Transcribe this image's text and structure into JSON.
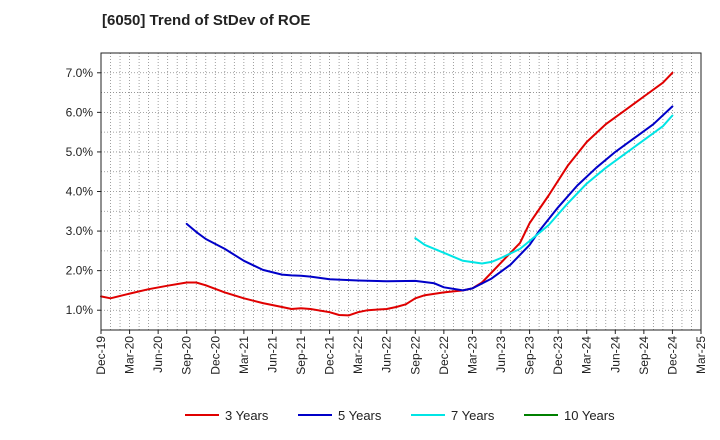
{
  "chart_data": {
    "type": "line",
    "title": "[6050]  Trend of StDev of ROE",
    "xlabel": "",
    "ylabel": "",
    "x_ticks": [
      "Dec-19",
      "Mar-20",
      "Jun-20",
      "Sep-20",
      "Dec-20",
      "Mar-21",
      "Jun-21",
      "Sep-21",
      "Dec-21",
      "Mar-22",
      "Jun-22",
      "Sep-22",
      "Dec-22",
      "Mar-23",
      "Jun-23",
      "Sep-23",
      "Dec-23",
      "Mar-24",
      "Jun-24",
      "Sep-24",
      "Dec-24",
      "Mar-25"
    ],
    "y_ticks": [
      "1.0%",
      "2.0%",
      "3.0%",
      "4.0%",
      "5.0%",
      "6.0%",
      "7.0%"
    ],
    "ylim": [
      0.5,
      7.5
    ],
    "grid": true,
    "legend_position": "bottom",
    "series": [
      {
        "name": "3 Years",
        "color": "#e00000",
        "points": [
          [
            "Dec-19",
            1.35
          ],
          [
            "Jan-20",
            1.3
          ],
          [
            "Mar-20",
            1.42
          ],
          [
            "May-20",
            1.53
          ],
          [
            "Jul-20",
            1.62
          ],
          [
            "Sep-20",
            1.7
          ],
          [
            "Oct-20",
            1.7
          ],
          [
            "Nov-20",
            1.63
          ],
          [
            "Jan-21",
            1.45
          ],
          [
            "Mar-21",
            1.3
          ],
          [
            "May-21",
            1.18
          ],
          [
            "Jul-21",
            1.08
          ],
          [
            "Aug-21",
            1.03
          ],
          [
            "Sep-21",
            1.05
          ],
          [
            "Oct-21",
            1.03
          ],
          [
            "Dec-21",
            0.95
          ],
          [
            "Jan-22",
            0.88
          ],
          [
            "Feb-22",
            0.87
          ],
          [
            "Mar-22",
            0.95
          ],
          [
            "Apr-22",
            1.0
          ],
          [
            "Jun-22",
            1.03
          ],
          [
            "Jul-22",
            1.08
          ],
          [
            "Aug-22",
            1.15
          ],
          [
            "Sep-22",
            1.3
          ],
          [
            "Oct-22",
            1.38
          ],
          [
            "Dec-22",
            1.45
          ],
          [
            "Feb-23",
            1.5
          ],
          [
            "Mar-23",
            1.55
          ],
          [
            "Apr-23",
            1.7
          ],
          [
            "Jun-23",
            2.2
          ],
          [
            "Aug-23",
            2.7
          ],
          [
            "Sep-23",
            3.2
          ],
          [
            "Nov-23",
            3.9
          ],
          [
            "Jan-24",
            4.65
          ],
          [
            "Mar-24",
            5.25
          ],
          [
            "May-24",
            5.7
          ],
          [
            "Jul-24",
            6.05
          ],
          [
            "Sep-24",
            6.4
          ],
          [
            "Nov-24",
            6.75
          ],
          [
            "Dec-24",
            7.0
          ]
        ]
      },
      {
        "name": "5 Years",
        "color": "#0000c8",
        "points": [
          [
            "Sep-20",
            3.18
          ],
          [
            "Oct-20",
            2.98
          ],
          [
            "Nov-20",
            2.8
          ],
          [
            "Jan-21",
            2.55
          ],
          [
            "Mar-21",
            2.25
          ],
          [
            "May-21",
            2.02
          ],
          [
            "Jul-21",
            1.9
          ],
          [
            "Aug-21",
            1.88
          ],
          [
            "Sep-21",
            1.87
          ],
          [
            "Oct-21",
            1.85
          ],
          [
            "Dec-21",
            1.78
          ],
          [
            "Mar-22",
            1.75
          ],
          [
            "Jun-22",
            1.73
          ],
          [
            "Sep-22",
            1.74
          ],
          [
            "Nov-22",
            1.68
          ],
          [
            "Dec-22",
            1.58
          ],
          [
            "Feb-23",
            1.5
          ],
          [
            "Mar-23",
            1.55
          ],
          [
            "May-23",
            1.8
          ],
          [
            "Jul-23",
            2.15
          ],
          [
            "Sep-23",
            2.65
          ],
          [
            "Oct-23",
            3.0
          ],
          [
            "Dec-23",
            3.6
          ],
          [
            "Feb-24",
            4.15
          ],
          [
            "Apr-24",
            4.6
          ],
          [
            "Jun-24",
            5.0
          ],
          [
            "Aug-24",
            5.35
          ],
          [
            "Oct-24",
            5.7
          ],
          [
            "Dec-24",
            6.15
          ]
        ]
      },
      {
        "name": "7 Years",
        "color": "#00e5e5",
        "points": [
          [
            "Sep-22",
            2.82
          ],
          [
            "Oct-22",
            2.65
          ],
          [
            "Dec-22",
            2.45
          ],
          [
            "Feb-23",
            2.25
          ],
          [
            "Apr-23",
            2.18
          ],
          [
            "May-23",
            2.22
          ],
          [
            "Jun-23",
            2.32
          ],
          [
            "Aug-23",
            2.55
          ],
          [
            "Sep-23",
            2.75
          ],
          [
            "Nov-23",
            3.15
          ],
          [
            "Jan-24",
            3.7
          ],
          [
            "Mar-24",
            4.2
          ],
          [
            "May-24",
            4.6
          ],
          [
            "Jul-24",
            4.95
          ],
          [
            "Sep-24",
            5.3
          ],
          [
            "Nov-24",
            5.65
          ],
          [
            "Dec-24",
            5.92
          ]
        ]
      },
      {
        "name": "10 Years",
        "color": "#008000",
        "points": []
      }
    ]
  }
}
